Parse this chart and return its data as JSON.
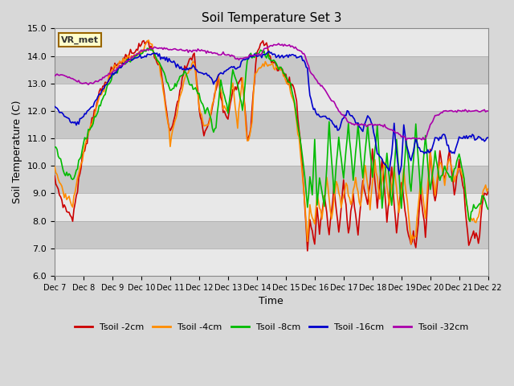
{
  "title": "Soil Temperature Set 3",
  "xlabel": "Time",
  "ylabel": "Soil Temperature (C)",
  "ylim": [
    6.0,
    15.0
  ],
  "yticks": [
    6.0,
    7.0,
    8.0,
    9.0,
    10.0,
    11.0,
    12.0,
    13.0,
    14.0,
    15.0
  ],
  "xlim": [
    0,
    360
  ],
  "xtick_positions": [
    0,
    24,
    48,
    72,
    96,
    120,
    144,
    168,
    192,
    216,
    240,
    264,
    288,
    312,
    336,
    360
  ],
  "xtick_labels": [
    "Dec 7",
    "Dec 8",
    "Dec 9",
    "Dec 10",
    "Dec 11",
    "Dec 12",
    "Dec 13",
    "Dec 14",
    "Dec 15",
    "Dec 16",
    "Dec 17",
    "Dec 18",
    "Dec 19",
    "Dec 20",
    "Dec 21",
    "Dec 22"
  ],
  "series_colors": [
    "#cc0000",
    "#ff8c00",
    "#00bb00",
    "#0000cc",
    "#aa00aa"
  ],
  "series_labels": [
    "Tsoil -2cm",
    "Tsoil -4cm",
    "Tsoil -8cm",
    "Tsoil -16cm",
    "Tsoil -32cm"
  ],
  "bg_color": "#d8d8d8",
  "band_colors": [
    "#e8e8e8",
    "#d0d0d0"
  ],
  "annotation_text": "VR_met",
  "annotation_bg": "#ffffcc",
  "annotation_border": "#996600"
}
